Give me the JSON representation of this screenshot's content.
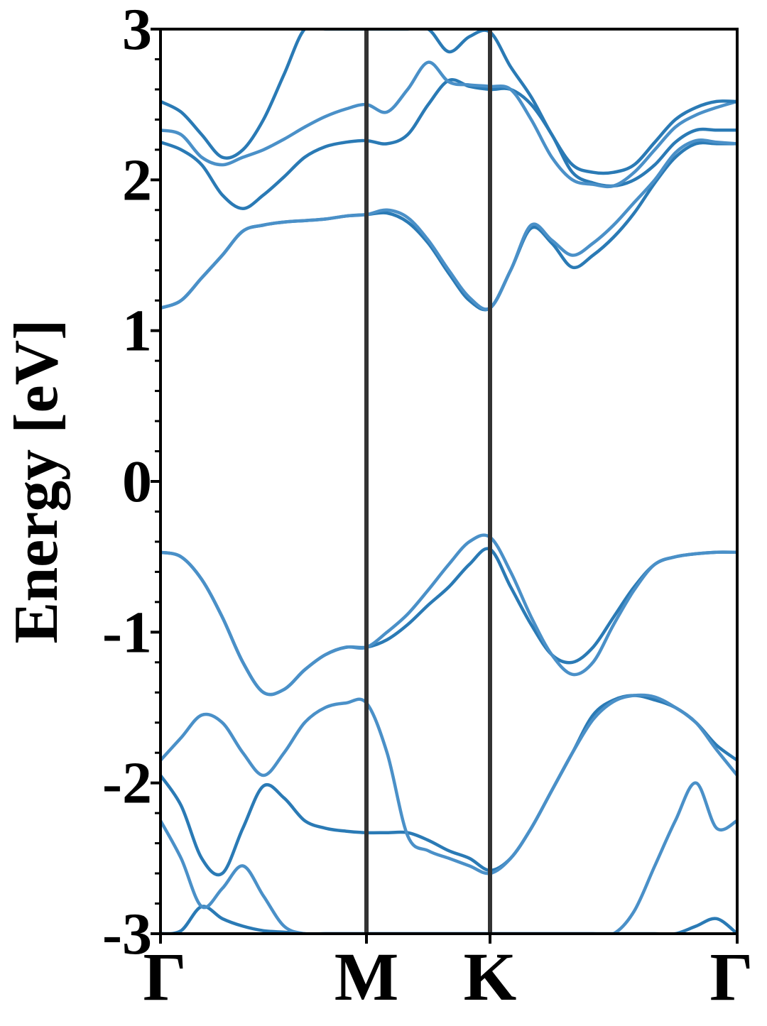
{
  "chart_data": {
    "type": "line",
    "title": "",
    "xlabel": "",
    "ylabel": "Energy [eV]",
    "ylim": [
      -3,
      3
    ],
    "yticks": [
      -3,
      -2,
      -1,
      0,
      1,
      2,
      3
    ],
    "ytick_labels": [
      "-3",
      "-2",
      "-1",
      "0",
      "1",
      "2",
      "3"
    ],
    "y_minor_step": 0.2,
    "x": [
      0,
      0.1,
      0.2,
      0.3,
      0.4,
      0.5,
      0.6,
      0.7,
      0.8,
      0.9,
      1.0,
      1.1,
      1.2,
      1.3,
      1.4,
      1.5,
      1.6,
      1.7,
      1.8,
      1.9,
      2.0,
      2.1,
      2.2,
      2.3,
      2.4,
      2.5,
      2.6,
      2.7,
      2.8
    ],
    "xlim": [
      0,
      2.8
    ],
    "high_symmetry_points": [
      {
        "label": "Γ",
        "x": 0
      },
      {
        "label": "M",
        "x": 1.0
      },
      {
        "label": "K",
        "x": 1.6
      },
      {
        "label": "Γ",
        "x": 2.8
      }
    ],
    "grid": false,
    "colors": {
      "band": "#2a7ab5",
      "band_light": "#4a90c8",
      "divider": "#333333",
      "axis": "#000000"
    },
    "series": [
      {
        "values": [
          -3.0,
          -2.98,
          -2.82,
          -2.9,
          -2.95,
          -2.98,
          -2.99,
          -3.0,
          -3.0,
          -3.0,
          -3.0,
          -3.0,
          -3.0,
          -3.0,
          -3.0,
          -3.0,
          -3.0,
          -3.0,
          -3.0,
          -3.0,
          -3.0,
          -3.0,
          -3.0,
          -3.0,
          -3.0,
          -3.0,
          -2.95,
          -2.9,
          -3.0
        ]
      },
      {
        "values": [
          -2.25,
          -2.5,
          -2.82,
          -2.7,
          -2.55,
          -2.75,
          -2.95,
          -3.0,
          -3.0,
          -3.0,
          -3.0,
          -3.0,
          -3.0,
          -3.0,
          -3.0,
          -3.0,
          -3.0,
          -3.0,
          -3.0,
          -3.0,
          -3.0,
          -3.0,
          -3.0,
          -2.85,
          -2.55,
          -2.25,
          -2.0,
          -2.3,
          -2.25
        ]
      },
      {
        "values": [
          -1.95,
          -2.15,
          -2.5,
          -2.6,
          -2.3,
          -2.02,
          -2.1,
          -2.25,
          -2.3,
          -2.32,
          -2.33,
          -2.33,
          -2.33,
          -2.38,
          -2.45,
          -2.5,
          -2.58,
          -2.5,
          -2.3,
          -2.05,
          -1.8,
          -1.55,
          -1.45,
          -1.42,
          -1.45,
          -1.5,
          -1.6,
          -1.75,
          -1.85
        ]
      },
      {
        "values": [
          -1.85,
          -1.7,
          -1.55,
          -1.6,
          -1.8,
          -1.95,
          -1.8,
          -1.6,
          -1.5,
          -1.47,
          -1.47,
          -1.8,
          -2.35,
          -2.45,
          -2.5,
          -2.55,
          -2.6,
          -2.5,
          -2.3,
          -2.05,
          -1.8,
          -1.58,
          -1.46,
          -1.42,
          -1.43,
          -1.5,
          -1.6,
          -1.78,
          -1.95
        ]
      },
      {
        "values": [
          -0.47,
          -0.5,
          -0.65,
          -0.9,
          -1.2,
          -1.4,
          -1.38,
          -1.25,
          -1.15,
          -1.1,
          -1.1,
          -1.05,
          -0.95,
          -0.82,
          -0.7,
          -0.55,
          -0.45,
          -0.7,
          -0.95,
          -1.15,
          -1.2,
          -1.1,
          -0.9,
          -0.7,
          -0.55,
          -0.5,
          -0.48,
          -0.47,
          -0.47
        ]
      },
      {
        "values": [
          -0.47,
          -0.5,
          -0.65,
          -0.9,
          -1.2,
          -1.4,
          -1.38,
          -1.25,
          -1.15,
          -1.1,
          -1.1,
          -1.0,
          -0.88,
          -0.72,
          -0.55,
          -0.4,
          -0.37,
          -0.6,
          -0.9,
          -1.15,
          -1.28,
          -1.2,
          -0.95,
          -0.72,
          -0.55,
          -0.5,
          -0.48,
          -0.47,
          -0.47
        ]
      },
      {
        "values": [
          1.15,
          1.2,
          1.35,
          1.5,
          1.66,
          1.7,
          1.72,
          1.73,
          1.74,
          1.76,
          1.77,
          1.78,
          1.72,
          1.58,
          1.38,
          1.2,
          1.15,
          1.4,
          1.68,
          1.58,
          1.42,
          1.5,
          1.62,
          1.78,
          1.98,
          2.15,
          2.24,
          2.24,
          2.24
        ]
      },
      {
        "values": [
          1.15,
          1.2,
          1.35,
          1.5,
          1.66,
          1.7,
          1.72,
          1.73,
          1.74,
          1.76,
          1.77,
          1.8,
          1.75,
          1.6,
          1.4,
          1.22,
          1.15,
          1.4,
          1.7,
          1.6,
          1.5,
          1.58,
          1.7,
          1.85,
          2.0,
          2.18,
          2.26,
          2.25,
          2.24
        ]
      },
      {
        "values": [
          2.25,
          2.2,
          2.1,
          1.9,
          1.81,
          1.9,
          2.02,
          2.15,
          2.22,
          2.25,
          2.26,
          2.24,
          2.3,
          2.5,
          2.66,
          2.62,
          2.6,
          2.6,
          2.5,
          2.3,
          2.05,
          1.98,
          1.96,
          2.0,
          2.1,
          2.25,
          2.33,
          2.33,
          2.33
        ]
      },
      {
        "values": [
          2.33,
          2.3,
          2.15,
          2.1,
          2.15,
          2.2,
          2.27,
          2.35,
          2.42,
          2.47,
          2.5,
          2.45,
          2.6,
          2.78,
          2.65,
          2.63,
          2.62,
          2.6,
          2.4,
          2.15,
          2.0,
          1.97,
          1.96,
          2.05,
          2.2,
          2.35,
          2.43,
          2.48,
          2.52
        ]
      },
      {
        "values": [
          2.52,
          2.45,
          2.3,
          2.15,
          2.2,
          2.4,
          2.7,
          3.0,
          3.0,
          3.0,
          3.0,
          3.0,
          3.0,
          3.0,
          2.85,
          2.95,
          2.98,
          2.75,
          2.55,
          2.3,
          2.1,
          2.05,
          2.05,
          2.1,
          2.25,
          2.4,
          2.48,
          2.52,
          2.52
        ]
      }
    ]
  }
}
